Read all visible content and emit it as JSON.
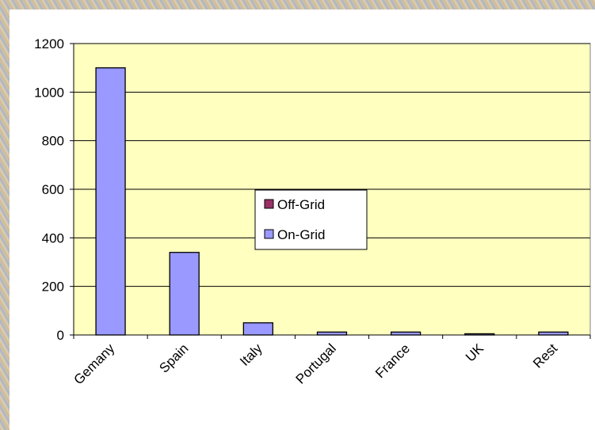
{
  "chart_data": {
    "type": "stacked_bar",
    "categories": [
      "Gemany",
      "Spain",
      "Italy",
      "Portugal",
      "France",
      "UK",
      "Rest"
    ],
    "series": [
      {
        "name": "Off-Grid",
        "color": "#993366",
        "values": [
          0,
          0,
          0,
          0,
          0,
          0,
          0
        ]
      },
      {
        "name": "On-Grid",
        "color": "#9999ff",
        "values": [
          1100,
          340,
          50,
          12,
          12,
          5,
          12
        ]
      }
    ],
    "ylim": [
      0,
      1200
    ],
    "yticks": [
      0,
      200,
      400,
      600,
      800,
      1000,
      1200
    ],
    "grid": true,
    "plot_background": "#ffffc0"
  }
}
